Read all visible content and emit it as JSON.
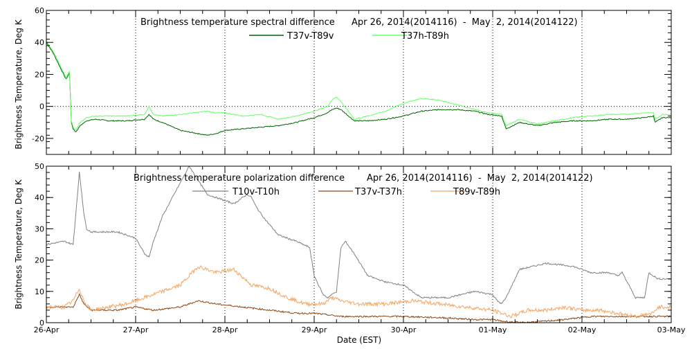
{
  "chart_data": [
    {
      "type": "line",
      "title": "Brightness temperature spectral difference",
      "date_range": "Apr 26, 2014(2014116)  -  May  2, 2014(2014122)",
      "ylabel": "Brightness Temperature, Deg K",
      "xlim": [
        0,
        7
      ],
      "ylim": [
        -30,
        60
      ],
      "yticks": [
        -20,
        0,
        20,
        40,
        60
      ],
      "series": [
        {
          "name": "T37v-T89v",
          "color": "#006400",
          "x": [
            0,
            0.08,
            0.15,
            0.22,
            0.26,
            0.28,
            0.3,
            0.33,
            0.38,
            0.45,
            0.55,
            0.7,
            0.9,
            1.1,
            1.15,
            1.2,
            1.3,
            1.5,
            1.8,
            1.9,
            2.0,
            2.2,
            2.4,
            2.6,
            2.8,
            3.0,
            3.15,
            3.2,
            3.25,
            3.3,
            3.45,
            3.6,
            3.8,
            4.0,
            4.2,
            4.4,
            4.6,
            4.8,
            4.95,
            5.1,
            5.15,
            5.3,
            5.5,
            5.7,
            5.9,
            6.1,
            6.3,
            6.5,
            6.7,
            6.8,
            6.82,
            6.9,
            7.0
          ],
          "values": [
            40,
            33,
            25,
            17,
            21,
            -10,
            -14,
            -16,
            -12,
            -9,
            -8,
            -9,
            -9,
            -8,
            -5,
            -8,
            -10,
            -15,
            -18,
            -17,
            -15,
            -14,
            -13,
            -12,
            -10,
            -7,
            -4,
            -2,
            -1,
            -2,
            -9,
            -9,
            -8,
            -6,
            -3,
            -2,
            -2,
            -3,
            -5,
            -6,
            -14,
            -10,
            -12,
            -10,
            -9,
            -9,
            -8,
            -8,
            -7,
            -6,
            -10,
            -7,
            -7
          ]
        },
        {
          "name": "T37h-T89h",
          "color": "#66ff66",
          "x": [
            0,
            0.08,
            0.15,
            0.22,
            0.26,
            0.28,
            0.3,
            0.33,
            0.38,
            0.45,
            0.55,
            0.7,
            0.9,
            1.1,
            1.15,
            1.2,
            1.3,
            1.5,
            1.8,
            1.9,
            2.0,
            2.2,
            2.4,
            2.6,
            2.8,
            3.0,
            3.15,
            3.2,
            3.25,
            3.3,
            3.45,
            3.6,
            3.8,
            4.0,
            4.2,
            4.4,
            4.6,
            4.8,
            4.95,
            5.1,
            5.15,
            5.3,
            5.5,
            5.7,
            5.9,
            6.1,
            6.3,
            6.5,
            6.7,
            6.8,
            6.82,
            6.9,
            7.0
          ],
          "values": [
            41,
            34,
            26,
            18,
            22,
            -9,
            -13,
            -15,
            -10,
            -7,
            -6,
            -6,
            -6,
            -5,
            0,
            -5,
            -6,
            -5,
            -3,
            -4,
            -4,
            -6,
            -5,
            -8,
            -6,
            -3,
            0,
            4,
            6,
            3,
            -8,
            -6,
            -3,
            2,
            5,
            4,
            1,
            -2,
            -4,
            -5,
            -12,
            -8,
            -11,
            -9,
            -7,
            -6,
            -5,
            -5,
            -4,
            -4,
            -8,
            -5,
            -5
          ]
        }
      ]
    },
    {
      "type": "line",
      "title": "Brightness temperature polarization difference",
      "date_range": "Apr 26, 2014(2014116)  -  May  2, 2014(2014122)",
      "ylabel": "Brightness Temperature, Deg K",
      "xlabel": "Date (EST)",
      "xlim": [
        0,
        7
      ],
      "ylim": [
        0,
        50
      ],
      "yticks": [
        0,
        10,
        20,
        30,
        40,
        50
      ],
      "xticks": [
        "26-Apr",
        "27-Apr",
        "28-Apr",
        "29-Apr",
        "30-Apr",
        "01-May",
        "02-May",
        "03-May"
      ],
      "series": [
        {
          "name": "T10v-T10h",
          "color": "#808080",
          "x": [
            0,
            0.2,
            0.3,
            0.37,
            0.42,
            0.45,
            0.5,
            0.6,
            0.8,
            1.0,
            1.1,
            1.15,
            1.2,
            1.3,
            1.45,
            1.6,
            1.8,
            2.0,
            2.1,
            2.25,
            2.3,
            2.35,
            2.45,
            2.6,
            2.8,
            2.95,
            3.0,
            3.1,
            3.15,
            3.25,
            3.3,
            3.35,
            3.45,
            3.6,
            3.8,
            4.0,
            4.2,
            4.5,
            4.8,
            5.0,
            5.05,
            5.1,
            5.15,
            5.3,
            5.6,
            5.9,
            6.1,
            6.3,
            6.4,
            6.45,
            6.6,
            6.7,
            6.75,
            6.85,
            7.0
          ],
          "values": [
            25,
            26,
            25,
            48,
            35,
            30,
            29,
            29,
            29,
            27,
            22,
            21,
            26,
            34,
            42,
            50,
            41,
            39,
            38,
            41,
            40,
            37,
            33,
            28,
            26,
            24,
            15,
            9,
            8,
            10,
            24,
            26,
            22,
            15,
            13,
            12,
            8,
            8,
            10,
            9,
            7,
            6,
            8,
            17,
            19,
            18,
            16,
            16,
            15,
            16,
            8,
            8,
            16,
            14,
            14
          ]
        },
        {
          "name": "T37v-T37h",
          "color": "#8b4513",
          "x": [
            0,
            0.2,
            0.3,
            0.37,
            0.42,
            0.5,
            0.8,
            1.0,
            1.2,
            1.5,
            1.7,
            1.9,
            2.2,
            2.5,
            2.8,
            3.0,
            3.3,
            3.6,
            4.0,
            4.5,
            4.8,
            5.0,
            5.1,
            5.3,
            5.6,
            5.8,
            6.1,
            6.4,
            6.6,
            6.8,
            7.0
          ],
          "values": [
            5,
            5,
            5,
            9,
            6,
            4,
            4,
            5,
            4,
            5,
            7,
            6,
            5,
            4,
            3,
            3,
            2,
            2,
            2,
            1.5,
            1,
            1,
            0.5,
            0,
            0.5,
            1,
            2,
            2,
            2,
            2,
            2
          ]
        },
        {
          "name": "T89v-T89h",
          "color": "#f4a460",
          "x": [
            0,
            0.2,
            0.3,
            0.37,
            0.42,
            0.5,
            0.7,
            0.9,
            1.1,
            1.3,
            1.5,
            1.7,
            1.9,
            2.1,
            2.3,
            2.5,
            2.7,
            2.9,
            3.1,
            3.2,
            3.3,
            3.5,
            3.8,
            4.1,
            4.4,
            4.7,
            5.0,
            5.2,
            5.4,
            5.6,
            5.8,
            6.0,
            6.2,
            6.4,
            6.6,
            6.8,
            6.85,
            7.0
          ],
          "values": [
            5,
            5,
            7,
            11,
            7,
            4,
            5,
            6,
            8,
            10,
            12,
            18,
            16,
            17,
            12,
            11,
            8,
            6,
            6,
            8,
            7,
            6,
            6,
            7,
            6,
            5,
            4,
            2,
            4,
            4,
            5,
            4,
            4,
            3,
            2,
            3,
            5,
            5
          ]
        }
      ]
    }
  ]
}
